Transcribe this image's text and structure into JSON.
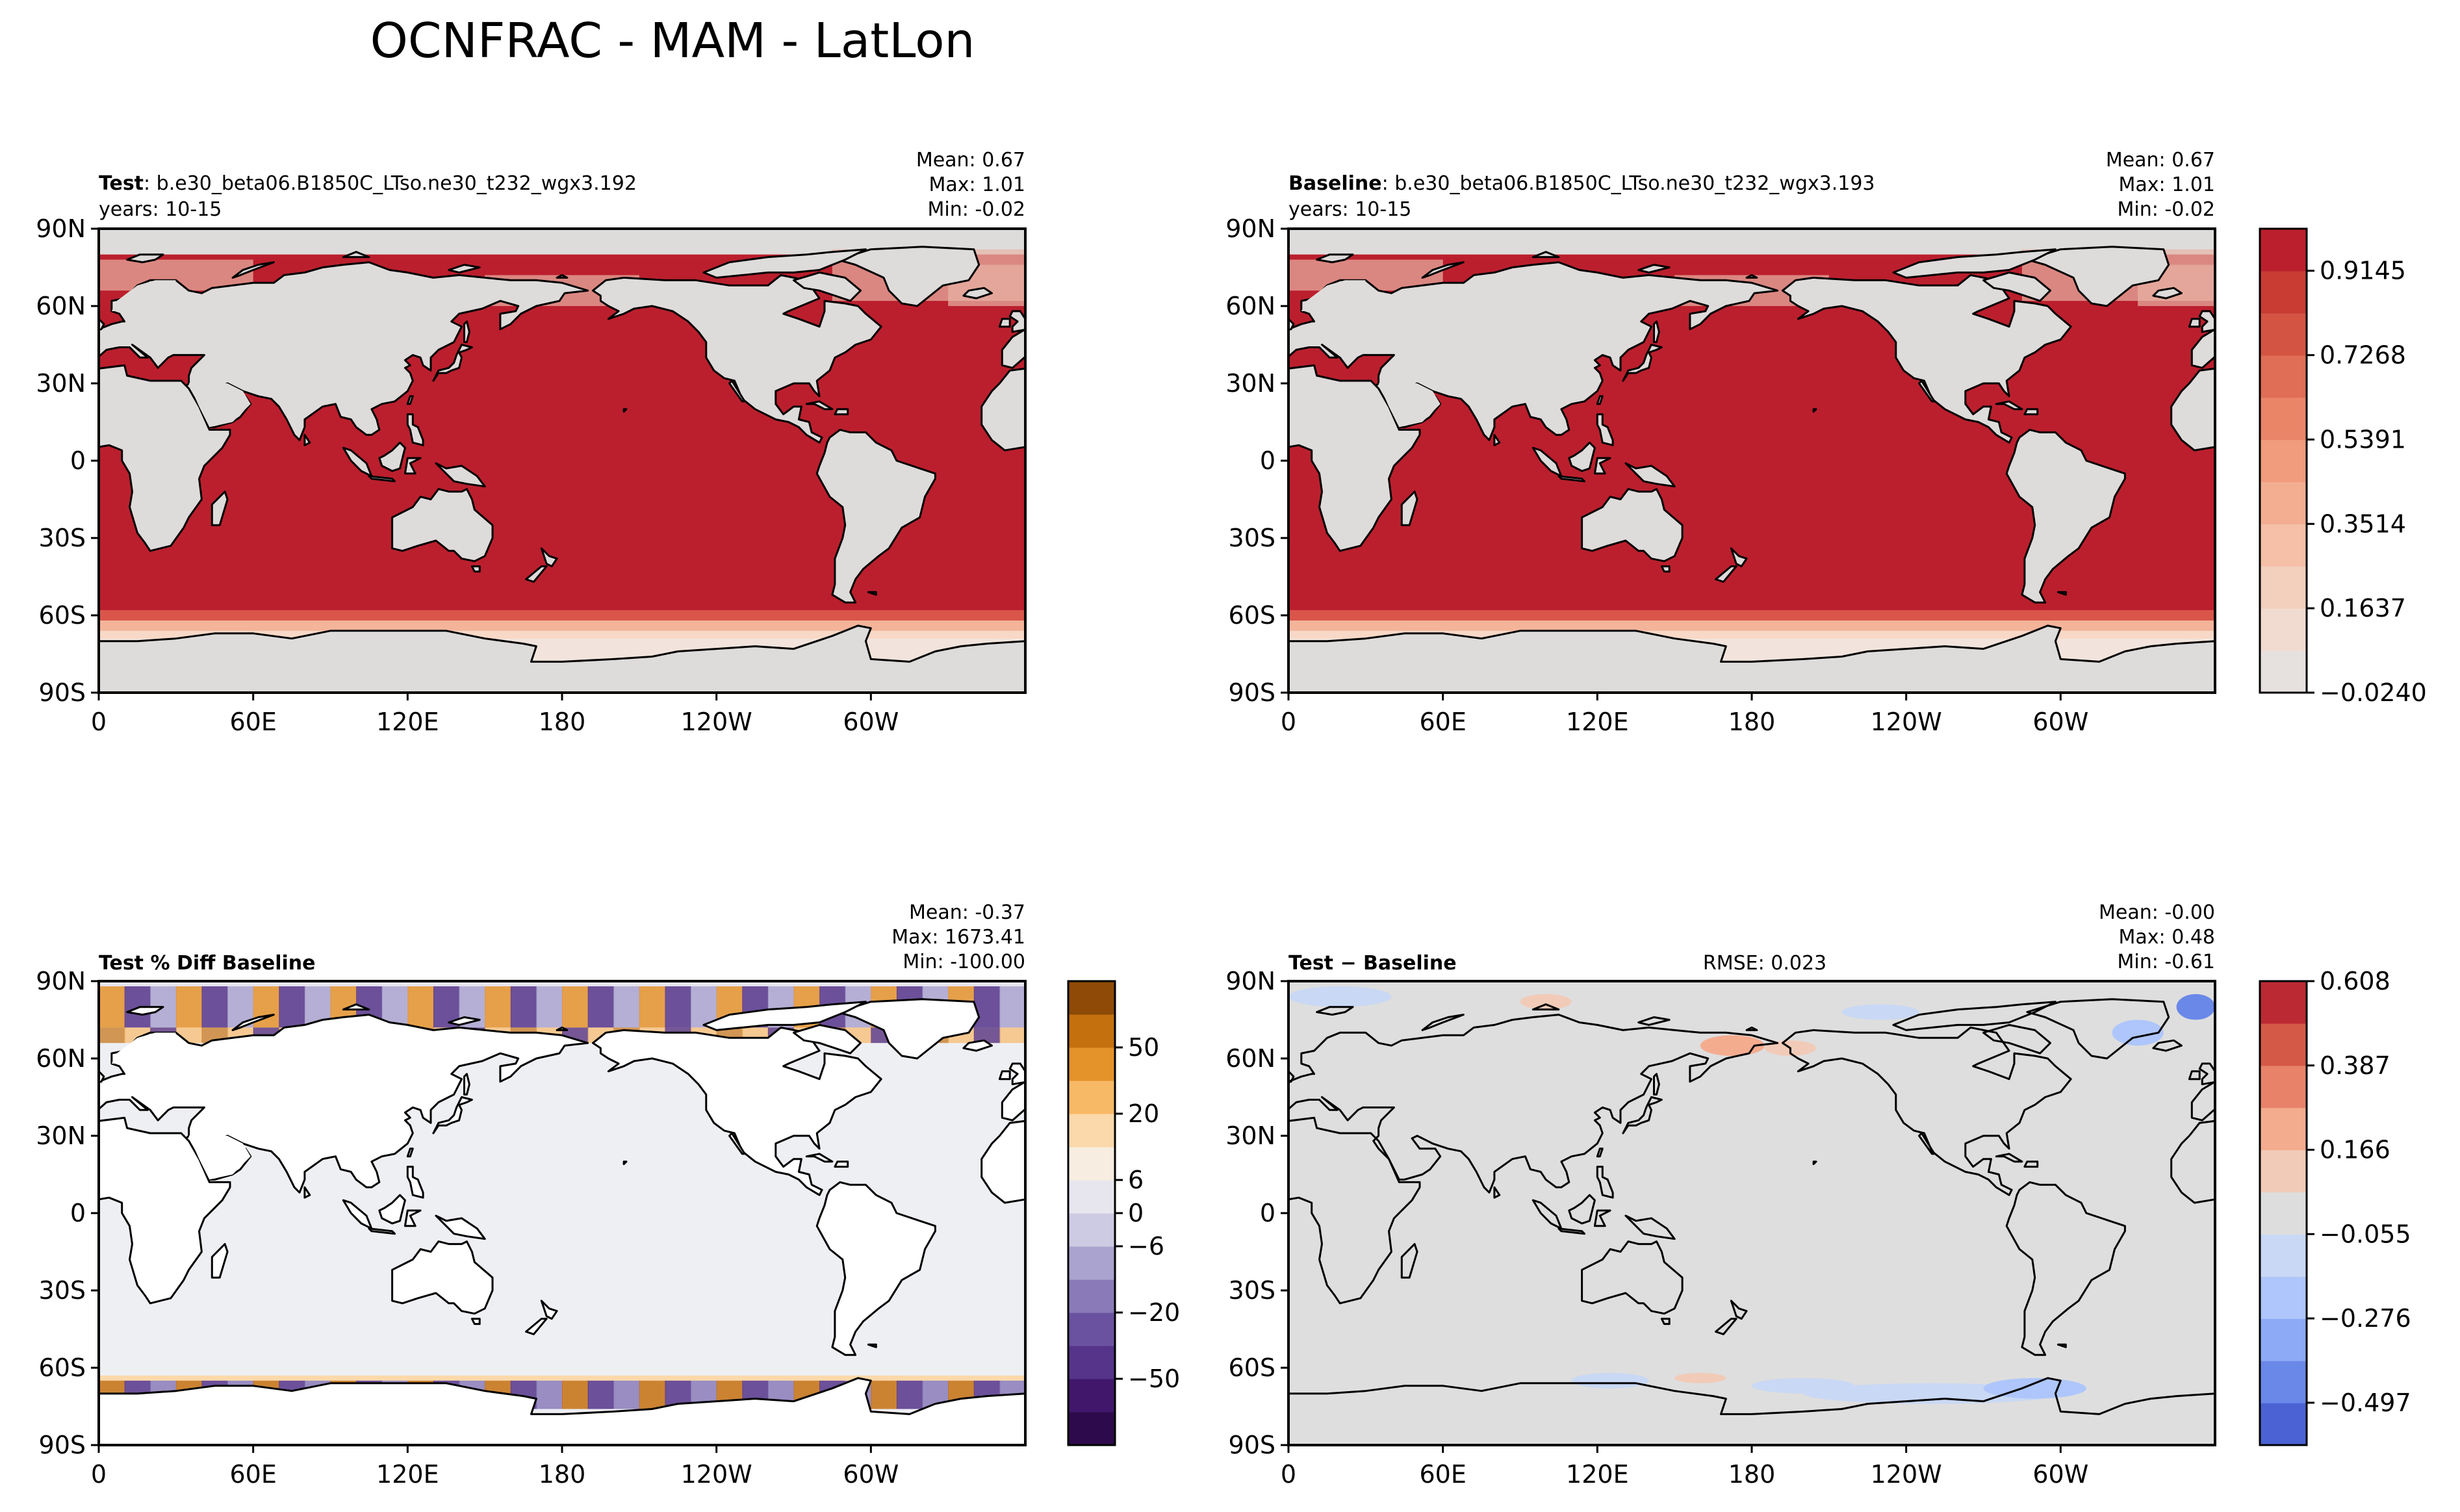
{
  "figure_title": "OCNFRAC - MAM - LatLon",
  "colors": {
    "land_gray": "#dedcda",
    "ocean_red": "#bb1f2d",
    "diff_neutral": "#dedede",
    "pct_ocean": "#eeeff3",
    "pct_land": "#ffffff",
    "coast": "#000000"
  },
  "chart_data": [
    {
      "type": "heatmap",
      "panel": "test",
      "label_bold": "Test",
      "label_rest": ": b.e30_beta06.B1850C_LTso.ne30_t232_wgx3.192",
      "years": "years: 10-15",
      "stats": [
        "Mean:  0.67",
        "Max:  1.01",
        "Min: -0.02"
      ],
      "xticks": [
        "0",
        "60E",
        "120E",
        "180",
        "120W",
        "60W"
      ],
      "yticks": [
        "90N",
        "60N",
        "30N",
        "0",
        "30S",
        "60S",
        "90S"
      ],
      "xlim": [
        0,
        360
      ],
      "ylim": [
        -90,
        90
      ],
      "variable": "OCNFRAC",
      "value_range": [
        -0.02,
        1.01
      ]
    },
    {
      "type": "heatmap",
      "panel": "baseline",
      "label_bold": "Baseline",
      "label_rest": ": b.e30_beta06.B1850C_LTso.ne30_t232_wgx3.193",
      "years": "years: 10-15",
      "stats": [
        "Mean:  0.67",
        "Max:  1.01",
        "Min: -0.02"
      ],
      "xticks": [
        "0",
        "60E",
        "120E",
        "180",
        "120W",
        "60W"
      ],
      "yticks": [
        "90N",
        "60N",
        "30N",
        "0",
        "30S",
        "60S",
        "90S"
      ],
      "xlim": [
        0,
        360
      ],
      "ylim": [
        -90,
        90
      ],
      "colorbar": {
        "ticks": [
          "0.9145",
          "0.7268",
          "0.5391",
          "0.3514",
          "0.1637",
          "−0.0240"
        ],
        "tick_values": [
          0.9145,
          0.7268,
          0.5391,
          0.3514,
          0.1637,
          -0.024
        ],
        "range": [
          -0.024,
          1.008
        ],
        "levels": 11,
        "colors": [
          "#e6e1de",
          "#f1dbd1",
          "#f3cfbe",
          "#f5c0a7",
          "#f3ae92",
          "#f09c7d",
          "#ea8568",
          "#e06d55",
          "#d45443",
          "#c83c34",
          "#bb1f2d"
        ]
      }
    },
    {
      "type": "heatmap",
      "panel": "pct_diff",
      "label_bold": "Test % Diff Baseline",
      "stats": [
        "Mean: -0.37",
        "Max: 1673.41",
        "Min: -100.00"
      ],
      "xticks": [
        "0",
        "60E",
        "120E",
        "180",
        "120W",
        "60W"
      ],
      "yticks": [
        "90N",
        "60N",
        "30N",
        "0",
        "30S",
        "60S",
        "90S"
      ],
      "xlim": [
        0,
        360
      ],
      "ylim": [
        -90,
        90
      ],
      "colorbar": {
        "ticks": [
          "50",
          "20",
          "6",
          "0",
          "−6",
          "−20",
          "−50"
        ],
        "tick_values": [
          50,
          20,
          6,
          0,
          -6,
          -20,
          -50
        ],
        "levels": 14,
        "colors": [
          "#2d0a4b",
          "#41176c",
          "#55348a",
          "#6b52a1",
          "#8a7bb8",
          "#aaa3cf",
          "#cdcae3",
          "#e7e6ef",
          "#f7ede0",
          "#fcd9aa",
          "#f8b966",
          "#e4922a",
          "#c4700f",
          "#8e4a06"
        ]
      }
    },
    {
      "type": "heatmap",
      "panel": "diff",
      "label_bold": "Test − Baseline",
      "rmse": "RMSE: 0.023",
      "stats": [
        "Mean: -0.00",
        "Max:  0.48",
        "Min: -0.61"
      ],
      "xticks": [
        "0",
        "60E",
        "120E",
        "180",
        "120W",
        "60W"
      ],
      "yticks": [
        "90N",
        "60N",
        "30N",
        "0",
        "30S",
        "60S",
        "90S"
      ],
      "xlim": [
        0,
        360
      ],
      "ylim": [
        -90,
        90
      ],
      "colorbar": {
        "ticks": [
          "0.608",
          "0.387",
          "0.166",
          "−0.055",
          "−0.276",
          "−0.497"
        ],
        "tick_values": [
          0.608,
          0.387,
          0.166,
          -0.055,
          -0.276,
          -0.497
        ],
        "range": [
          -0.608,
          0.608
        ],
        "levels": 11,
        "colors": [
          "#4a62d3",
          "#6a88e8",
          "#8daaf6",
          "#aec6fb",
          "#c9d8f4",
          "#dddddd",
          "#f1cbb8",
          "#f4ac8f",
          "#e8836a",
          "#d55947",
          "#bb2a33"
        ]
      }
    }
  ]
}
